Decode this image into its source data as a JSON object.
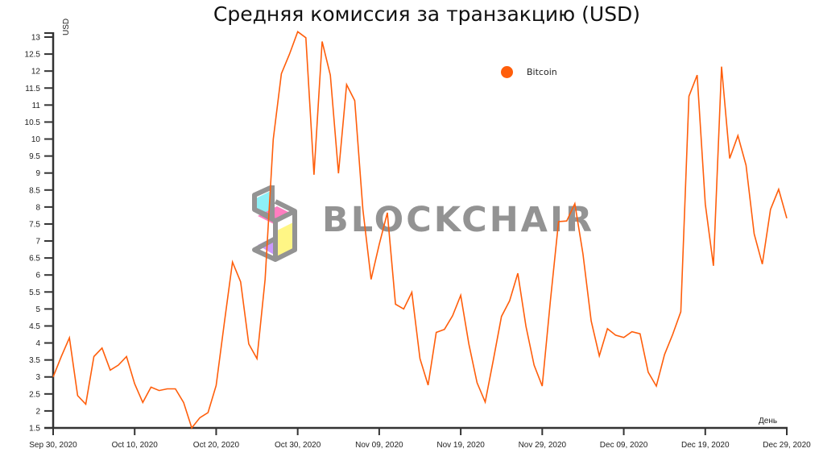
{
  "chart_data": {
    "type": "line",
    "title": "Средняя комиссия за транзакцию (USD)",
    "xlabel": "День",
    "ylabel": "USD",
    "ylim": [
      1.5,
      13
    ],
    "yticks": [
      "1.5",
      "2",
      "2.5",
      "3",
      "3.5",
      "4",
      "4.5",
      "5",
      "5.5",
      "6",
      "6.5",
      "7",
      "7.5",
      "8",
      "8.5",
      "9",
      "9.5",
      "10",
      "10.5",
      "11",
      "11.5",
      "12",
      "12.5",
      "13"
    ],
    "xticks": [
      "Sep 30, 2020",
      "Oct 10, 2020",
      "Oct 20, 2020",
      "Oct 30, 2020",
      "Nov 09, 2020",
      "Nov 19, 2020",
      "Nov 29, 2020",
      "Dec 09, 2020",
      "Dec 19, 2020",
      "Dec 29, 2020"
    ],
    "x_start": "Sep 30, 2020",
    "x_end": "Dec 29, 2020",
    "x_step": "1 day",
    "grid": false,
    "legend_position": "top-right-inside",
    "watermark": "BLOCKCHAIR",
    "series": [
      {
        "name": "Bitcoin",
        "color": "#ff5e0b",
        "values": [
          3.0,
          3.6,
          4.15,
          2.45,
          2.2,
          3.6,
          3.85,
          3.2,
          3.35,
          3.6,
          2.8,
          2.25,
          2.7,
          2.6,
          2.65,
          2.65,
          2.25,
          1.5,
          1.8,
          1.95,
          2.75,
          4.6,
          6.38,
          5.8,
          3.97,
          3.54,
          5.87,
          9.99,
          11.92,
          12.5,
          13.16,
          12.98,
          8.95,
          12.87,
          11.88,
          8.99,
          11.6,
          11.13,
          7.93,
          5.87,
          6.9,
          7.83,
          5.14,
          5.0,
          5.49,
          3.54,
          2.76,
          4.31,
          4.4,
          4.8,
          5.4,
          3.97,
          2.83,
          2.26,
          3.5,
          4.78,
          5.24,
          6.05,
          4.49,
          3.35,
          2.73,
          5.25,
          7.57,
          7.59,
          8.1,
          6.62,
          4.65,
          3.62,
          4.42,
          4.23,
          4.16,
          4.33,
          4.27,
          3.14,
          2.73,
          3.66,
          4.25,
          4.92,
          11.26,
          11.88,
          8.09,
          6.27,
          12.13,
          9.43,
          10.1,
          9.23,
          7.21,
          6.32,
          7.93,
          8.52,
          7.67
        ]
      }
    ]
  },
  "legend": {
    "items": [
      {
        "label": "Bitcoin",
        "color": "#ff5e0b"
      }
    ]
  },
  "watermark": {
    "text": "BLOCKCHAIR"
  }
}
